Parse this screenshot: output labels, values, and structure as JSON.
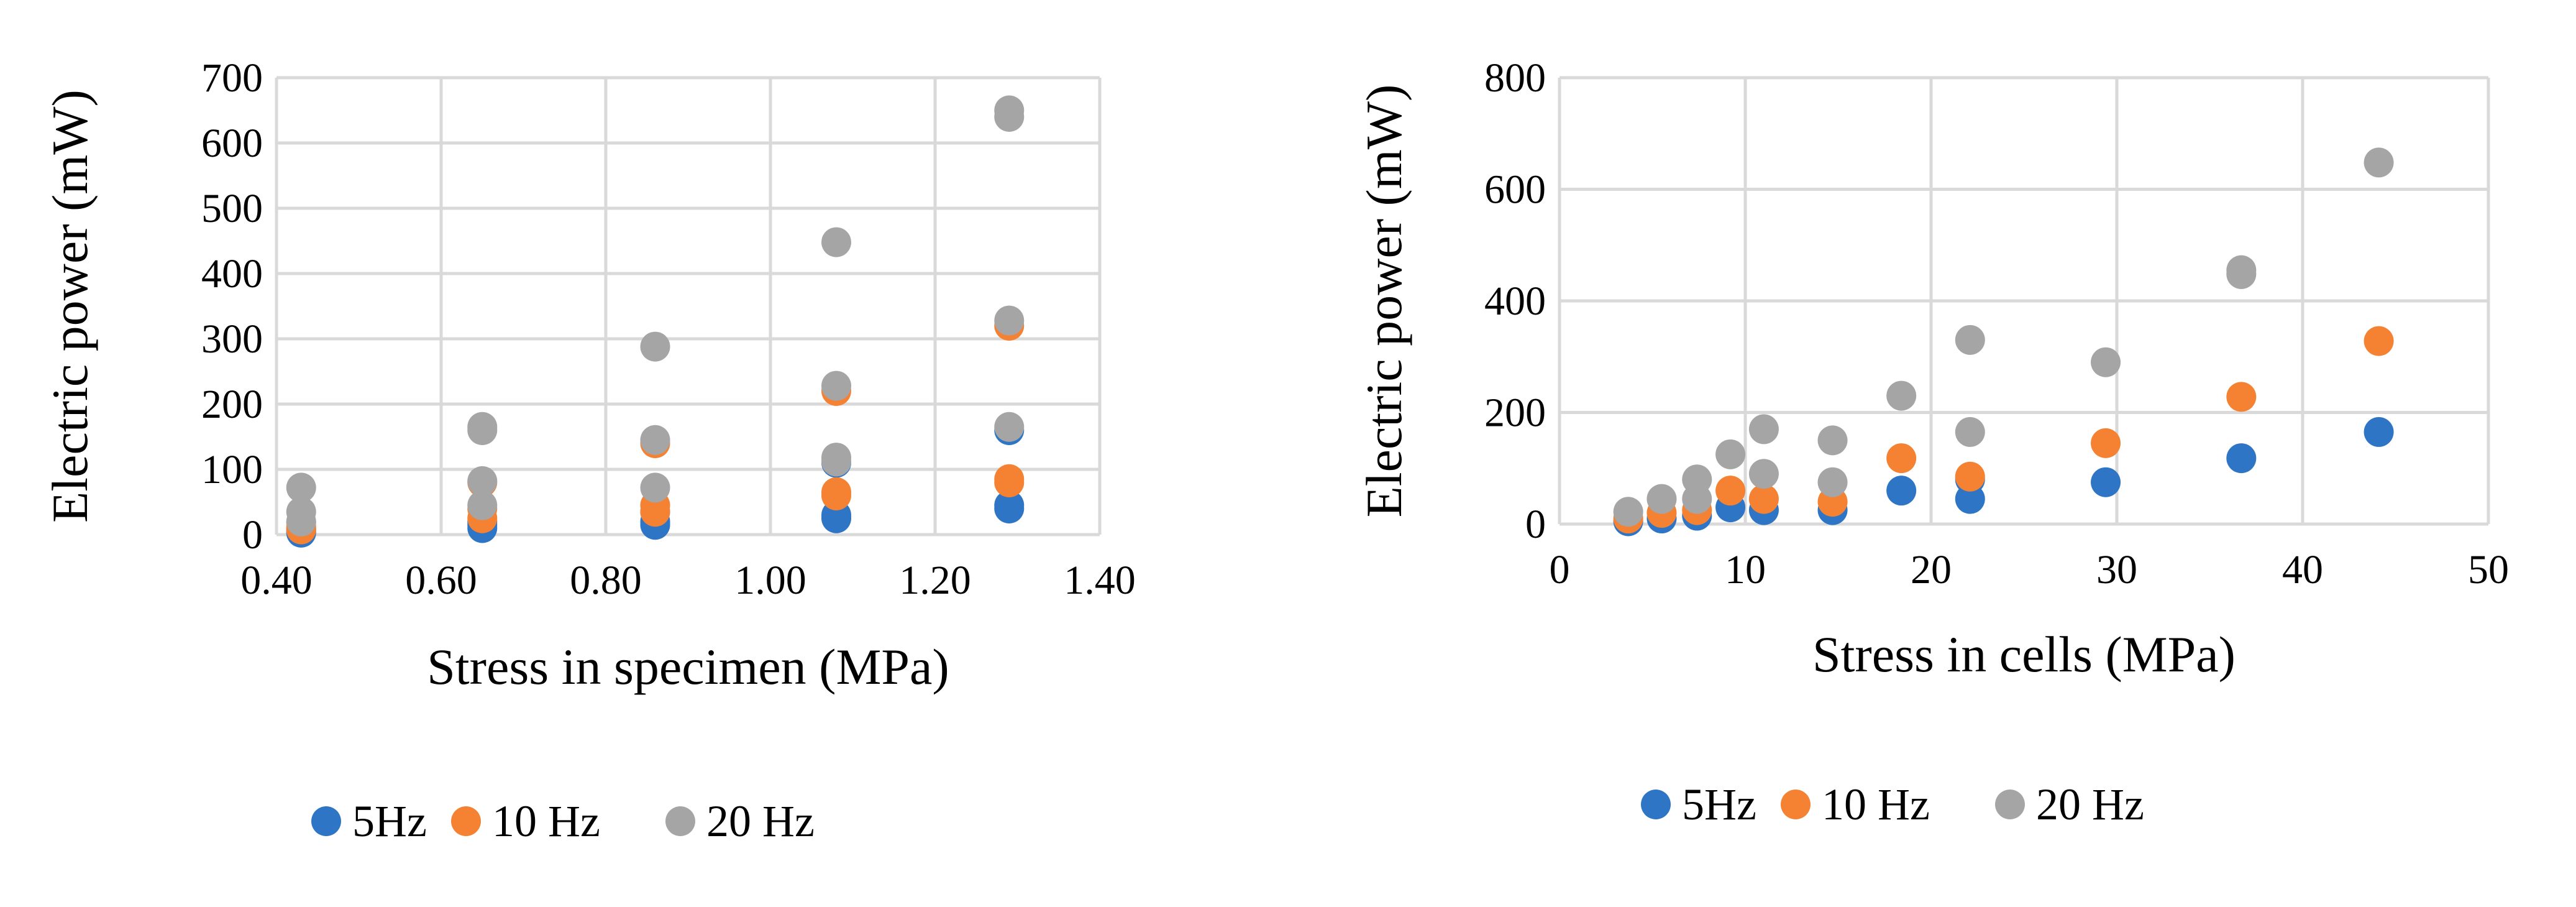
{
  "chart_data": [
    {
      "type": "scatter",
      "title": "",
      "xlabel": "Stress in specimen (MPa)",
      "ylabel": "Electric power (mW)",
      "xlim": [
        0.4,
        1.4
      ],
      "ylim": [
        0,
        700
      ],
      "xticks": [
        0.4,
        0.6,
        0.8,
        1.0,
        1.2,
        1.4
      ],
      "xtick_labels": [
        "0.40",
        "0.60",
        "0.80",
        "1.00",
        "1.20",
        "1.40"
      ],
      "yticks": [
        0,
        100,
        200,
        300,
        400,
        500,
        600,
        700
      ],
      "ytick_labels": [
        "0",
        "100",
        "200",
        "300",
        "400",
        "500",
        "600",
        "700"
      ],
      "grid": true,
      "legend_position": "bottom-center",
      "series": [
        {
          "name": "5Hz",
          "color": "#2e75c6",
          "points": [
            {
              "x": 0.43,
              "y": 3
            },
            {
              "x": 0.43,
              "y": 5
            },
            {
              "x": 0.43,
              "y": 8
            },
            {
              "x": 0.65,
              "y": 10
            },
            {
              "x": 0.65,
              "y": 15
            },
            {
              "x": 0.65,
              "y": 20
            },
            {
              "x": 0.86,
              "y": 15
            },
            {
              "x": 0.86,
              "y": 20
            },
            {
              "x": 0.86,
              "y": 35
            },
            {
              "x": 1.08,
              "y": 25
            },
            {
              "x": 1.08,
              "y": 30
            },
            {
              "x": 1.08,
              "y": 110
            },
            {
              "x": 1.29,
              "y": 40
            },
            {
              "x": 1.29,
              "y": 45
            },
            {
              "x": 1.29,
              "y": 160
            }
          ]
        },
        {
          "name": "10 Hz",
          "color": "#f58232",
          "points": [
            {
              "x": 0.43,
              "y": 8
            },
            {
              "x": 0.43,
              "y": 12
            },
            {
              "x": 0.43,
              "y": 18
            },
            {
              "x": 0.65,
              "y": 25
            },
            {
              "x": 0.65,
              "y": 40
            },
            {
              "x": 0.65,
              "y": 80
            },
            {
              "x": 0.86,
              "y": 35
            },
            {
              "x": 0.86,
              "y": 45
            },
            {
              "x": 0.86,
              "y": 140
            },
            {
              "x": 1.08,
              "y": 60
            },
            {
              "x": 1.08,
              "y": 65
            },
            {
              "x": 1.08,
              "y": 220
            },
            {
              "x": 1.29,
              "y": 80
            },
            {
              "x": 1.29,
              "y": 85
            },
            {
              "x": 1.29,
              "y": 320
            }
          ]
        },
        {
          "name": "20 Hz",
          "color": "#a5a5a5",
          "points": [
            {
              "x": 0.43,
              "y": 20
            },
            {
              "x": 0.43,
              "y": 35
            },
            {
              "x": 0.43,
              "y": 72
            },
            {
              "x": 0.65,
              "y": 45
            },
            {
              "x": 0.65,
              "y": 82
            },
            {
              "x": 0.65,
              "y": 160
            },
            {
              "x": 0.65,
              "y": 165
            },
            {
              "x": 0.86,
              "y": 72
            },
            {
              "x": 0.86,
              "y": 145
            },
            {
              "x": 0.86,
              "y": 288
            },
            {
              "x": 1.08,
              "y": 112
            },
            {
              "x": 1.08,
              "y": 118
            },
            {
              "x": 1.08,
              "y": 228
            },
            {
              "x": 1.08,
              "y": 448
            },
            {
              "x": 1.29,
              "y": 165
            },
            {
              "x": 1.29,
              "y": 328
            },
            {
              "x": 1.29,
              "y": 640
            },
            {
              "x": 1.29,
              "y": 650
            }
          ]
        }
      ]
    },
    {
      "type": "scatter",
      "title": "",
      "xlabel": "Stress in cells (MPa)",
      "ylabel": "Electric power (mW)",
      "xlim": [
        0,
        50
      ],
      "ylim": [
        0,
        800
      ],
      "xticks": [
        0,
        10,
        20,
        30,
        40,
        50
      ],
      "xtick_labels": [
        "0",
        "10",
        "20",
        "30",
        "40",
        "50"
      ],
      "yticks": [
        0,
        200,
        400,
        600,
        800
      ],
      "ytick_labels": [
        "0",
        "200",
        "400",
        "600",
        "800"
      ],
      "grid": true,
      "legend_position": "bottom-center",
      "series": [
        {
          "name": "5Hz",
          "color": "#2e75c6",
          "points": [
            {
              "x": 3.7,
              "y": 5
            },
            {
              "x": 5.5,
              "y": 10
            },
            {
              "x": 7.4,
              "y": 15
            },
            {
              "x": 9.2,
              "y": 30
            },
            {
              "x": 11,
              "y": 25
            },
            {
              "x": 14.7,
              "y": 25
            },
            {
              "x": 18.4,
              "y": 60
            },
            {
              "x": 22.1,
              "y": 45
            },
            {
              "x": 22.1,
              "y": 80
            },
            {
              "x": 29.4,
              "y": 75
            },
            {
              "x": 36.7,
              "y": 118
            },
            {
              "x": 44.1,
              "y": 165
            }
          ]
        },
        {
          "name": "10 Hz",
          "color": "#f58232",
          "points": [
            {
              "x": 3.7,
              "y": 10
            },
            {
              "x": 5.5,
              "y": 20
            },
            {
              "x": 7.4,
              "y": 25
            },
            {
              "x": 9.2,
              "y": 60
            },
            {
              "x": 11,
              "y": 45
            },
            {
              "x": 14.7,
              "y": 40
            },
            {
              "x": 18.4,
              "y": 118
            },
            {
              "x": 22.1,
              "y": 85
            },
            {
              "x": 29.4,
              "y": 145
            },
            {
              "x": 36.7,
              "y": 228
            },
            {
              "x": 44.1,
              "y": 328
            }
          ]
        },
        {
          "name": "20 Hz",
          "color": "#a5a5a5",
          "points": [
            {
              "x": 3.7,
              "y": 22
            },
            {
              "x": 5.5,
              "y": 45
            },
            {
              "x": 7.4,
              "y": 45
            },
            {
              "x": 7.4,
              "y": 80
            },
            {
              "x": 9.2,
              "y": 125
            },
            {
              "x": 11,
              "y": 90
            },
            {
              "x": 11,
              "y": 170
            },
            {
              "x": 14.7,
              "y": 75
            },
            {
              "x": 14.7,
              "y": 150
            },
            {
              "x": 18.4,
              "y": 230
            },
            {
              "x": 22.1,
              "y": 165
            },
            {
              "x": 22.1,
              "y": 330
            },
            {
              "x": 29.4,
              "y": 290
            },
            {
              "x": 36.7,
              "y": 448
            },
            {
              "x": 36.7,
              "y": 455
            },
            {
              "x": 44.1,
              "y": 648
            }
          ]
        }
      ]
    }
  ]
}
